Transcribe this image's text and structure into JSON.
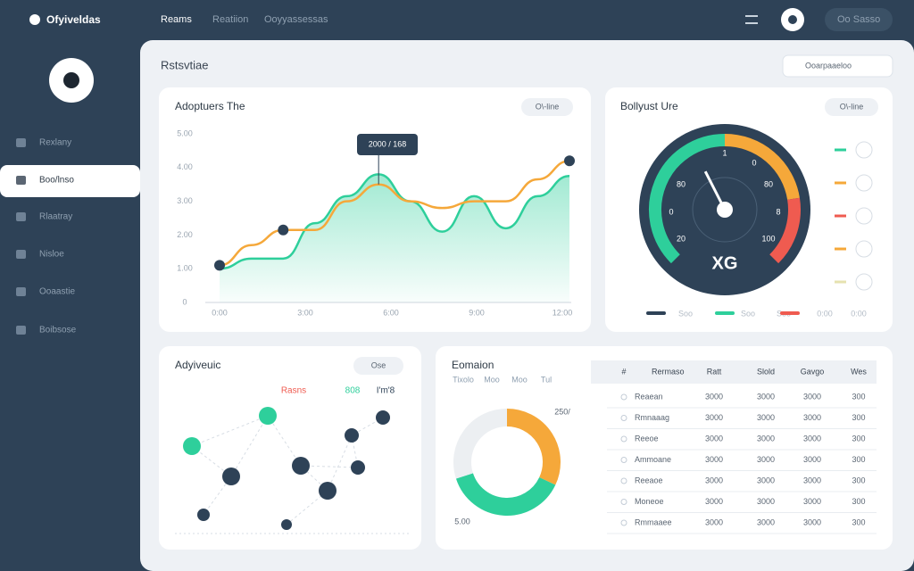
{
  "brand": "Ofyiveldas",
  "top_nav": [
    "Reams",
    "Reatiion",
    "Ooyyassessas"
  ],
  "user": "Oo Sasso",
  "sidebar": [
    "Rexlany",
    "Boo/lnso",
    "Rlaatray",
    "Nisloe",
    "Ooaastie",
    "Boibsose"
  ],
  "header": {
    "title": "Rstsvtiae",
    "search": "Ooarpaaeloo"
  },
  "line_panel": {
    "title": "Adoptuers The",
    "button": "O\\-line",
    "tooltip": "2000 / 168",
    "ylim": [
      0,
      5
    ],
    "yticks": [
      0,
      {
        "value": 1,
        "label": "1.00"
      },
      {
        "value": 2,
        "label": "2.00"
      },
      {
        "value": 3,
        "label": "3.00"
      },
      {
        "value": 4,
        "label": "4.00"
      },
      {
        "value": 5,
        "label": "5.00"
      }
    ],
    "xlabels": [
      "0:00",
      "3:00",
      "6:00",
      "9:00",
      "12:00"
    ],
    "series": [
      {
        "color": "#f5a83a",
        "values": [
          1.1,
          1.7,
          2.15,
          2.15,
          3.0,
          3.5,
          3.0,
          2.8,
          3.0,
          3.0,
          3.65,
          4.2
        ]
      },
      {
        "color": "#2ecf9b",
        "values": [
          1.0,
          1.3,
          1.3,
          2.35,
          3.15,
          3.8,
          3.0,
          2.1,
          3.15,
          2.2,
          3.15,
          3.75
        ]
      }
    ]
  },
  "gauge_panel": {
    "title": "Bollyust Ure",
    "button": "O\\-line",
    "center": "XG",
    "min": 0,
    "max": 100,
    "value": 40,
    "labels": [
      "1",
      "0",
      "80",
      "80",
      "0",
      "8",
      "20",
      "100"
    ],
    "segments": [
      {
        "value": 50,
        "color": "#2ecf9b"
      },
      {
        "value": 30,
        "color": "#f5a83a"
      },
      {
        "value": 20,
        "color": "#ef5b50"
      }
    ],
    "legend_colors": [
      "#2ecf9b",
      "#f5a83a",
      "#ef5b50",
      "#f5a83a",
      "#e6e2b0"
    ],
    "bottom": [
      "Soo",
      "Soo",
      "Soo",
      "0:00",
      "0:00"
    ]
  },
  "network_panel": {
    "title": "Adyiveuic",
    "button": "Ose",
    "legend": [
      {
        "name": "Rasns",
        "color": "#ef5b50"
      },
      {
        "name": "808",
        "color": "#2ecf9b"
      },
      {
        "name": "I'm'8",
        "color": "#2e4257"
      }
    ]
  },
  "donut_panel": {
    "title": "Eomaion",
    "tabs": [
      "Tixolo",
      "Moo",
      "Moo",
      "Tul"
    ],
    "labels": [
      "250/",
      "5.00"
    ],
    "segments": [
      {
        "value": 32,
        "color": "#f5a83a"
      },
      {
        "value": 38,
        "color": "#2ecf9b"
      },
      {
        "value": 30,
        "color": "#eceff2"
      }
    ]
  },
  "table": {
    "header": [
      "#",
      "Rermaso",
      "Ratt",
      "Slold",
      "Gavgo",
      "Wes"
    ],
    "rows": [
      [
        "Reaean",
        "3000",
        "3000",
        "3000",
        "300"
      ],
      [
        "Rmnaaag",
        "3000",
        "3000",
        "3000",
        "300"
      ],
      [
        "Reeoe",
        "3000",
        "3000",
        "3000",
        "300"
      ],
      [
        "Ammoane",
        "3000",
        "3000",
        "3000",
        "300"
      ],
      [
        "Reeaoe",
        "3000",
        "3000",
        "3000",
        "300"
      ],
      [
        "Moneoe",
        "3000",
        "3000",
        "3000",
        "300"
      ],
      [
        "Rmmaaee",
        "3000",
        "3000",
        "3000",
        "300"
      ]
    ]
  }
}
